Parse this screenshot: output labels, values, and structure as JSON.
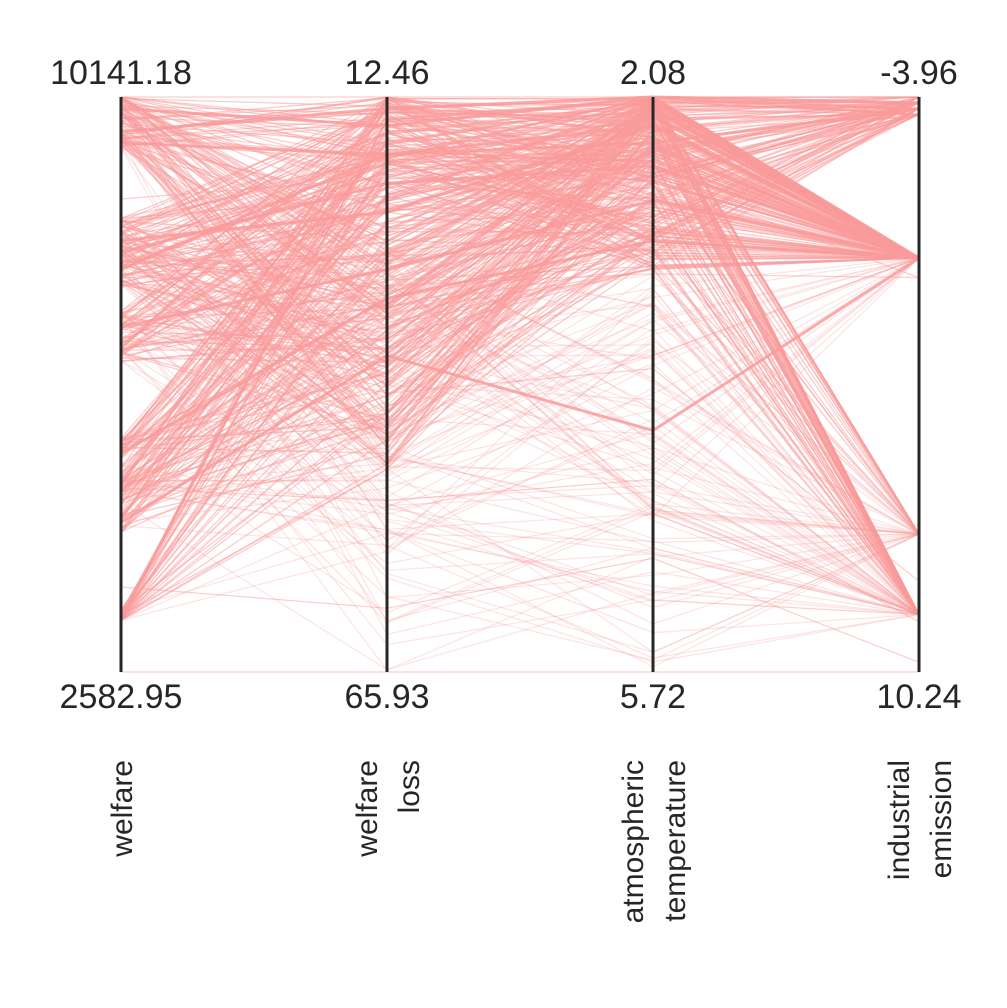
{
  "chart_data": {
    "type": "parallel-coordinates",
    "line_color": "#f99b9b",
    "axes": [
      {
        "name": "welfare",
        "label_lines": [
          "welfare"
        ],
        "top": "10141.18",
        "bottom": "2582.95",
        "top_value": 10141.18,
        "bottom_value": 2582.95
      },
      {
        "name": "welfare loss",
        "label_lines": [
          "welfare",
          "loss"
        ],
        "top": "12.46",
        "bottom": "65.93",
        "top_value": 12.46,
        "bottom_value": 65.93
      },
      {
        "name": "atmospheric temperature",
        "label_lines": [
          "atmospheric",
          "temperature"
        ],
        "top": "2.08",
        "bottom": "5.72",
        "top_value": 2.08,
        "bottom_value": 5.72
      },
      {
        "name": "industrial emission",
        "label_lines": [
          "industrial",
          "emission"
        ],
        "top": "-3.96",
        "bottom": "10.24",
        "top_value": -3.96,
        "bottom_value": 10.24
      }
    ],
    "line_count": 500,
    "representative_lines": [
      [
        10141.18,
        12.46,
        2.08,
        -3.96
      ],
      [
        9500,
        15,
        2.3,
        -3.5
      ],
      [
        8800,
        20,
        2.6,
        0.5
      ],
      [
        8000,
        30,
        3.2,
        0.5
      ],
      [
        7000,
        40,
        3.8,
        8.0
      ],
      [
        5000,
        50,
        4.5,
        9.0
      ],
      [
        3700,
        60,
        5.0,
        10.0
      ],
      [
        2582.95,
        65.93,
        5.72,
        10.24
      ]
    ]
  }
}
